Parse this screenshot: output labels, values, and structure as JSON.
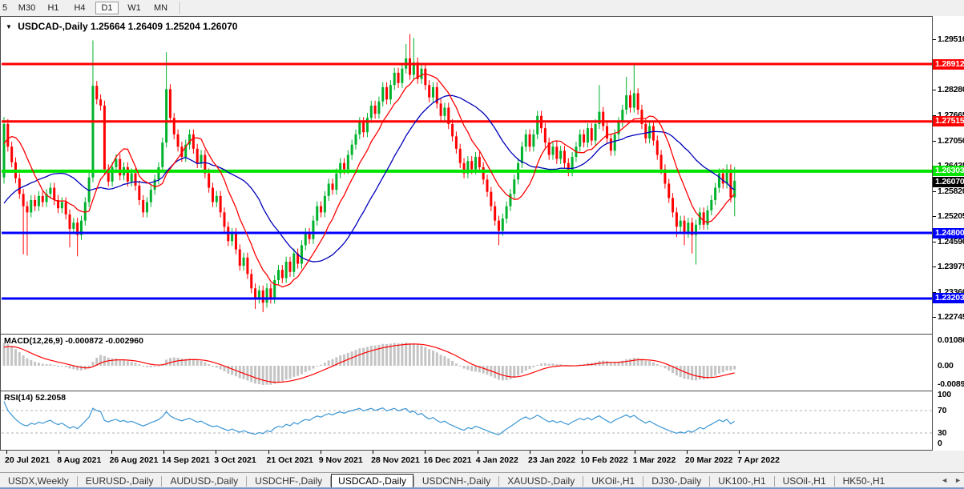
{
  "toolbar": {
    "timeframes": [
      "5",
      "M30",
      "H1",
      "H4",
      "D1",
      "W1",
      "MN"
    ],
    "active": "D1"
  },
  "chart": {
    "dropdown_icon": "▼",
    "symbol": "USDCAD-,Daily",
    "ohlc": "1.25664 1.26409 1.25204 1.26070"
  },
  "price_axis": {
    "ticks": [
      "1.29510",
      "1.28280",
      "1.27665",
      "1.27050",
      "1.26435",
      "1.25820",
      "1.25205",
      "1.24590",
      "1.23975",
      "1.23360",
      "1.22745"
    ]
  },
  "current_price": {
    "label": "1.26070",
    "price": 1.2607,
    "badge_bg": "#000000"
  },
  "macd": {
    "label": "MACD(12,26,9)",
    "values": "-0.000872 -0.002960",
    "axis": [
      "0.010869",
      "0.00",
      "-0.00897"
    ]
  },
  "rsi": {
    "label": "RSI(14)",
    "value": "52.2058",
    "axis": [
      "100",
      "70",
      "30",
      "0"
    ],
    "levels": [
      70,
      30
    ]
  },
  "date_axis": [
    "20 Jul 2021",
    "8 Aug 2021",
    "26 Aug 2021",
    "14 Sep 2021",
    "3 Oct 2021",
    "21 Oct 2021",
    "9 Nov 2021",
    "28 Nov 2021",
    "16 Dec 2021",
    "4 Jan 2022",
    "23 Jan 2022",
    "10 Feb 2022",
    "1 Mar 2022",
    "20 Mar 2022",
    "7 Apr 2022"
  ],
  "tabs": {
    "items": [
      "USDX,Weekly",
      "EURUSD-,Daily",
      "AUDUSD-,Daily",
      "USDCHF-,Daily",
      "USDCAD-,Daily",
      "USDCNH-,Daily",
      "XAUUSD-,Daily",
      "UKOil-,H1",
      "DJ30-,Daily",
      "UK100-,H1",
      "USOil-,H1",
      "HK50-,H1"
    ],
    "active": "USDCAD-,Daily",
    "scroll_left_icon": "◄",
    "scroll_right_icon": "►"
  },
  "colors": {
    "up": "#00b22c",
    "down": "#ff0000",
    "ma_fast": "#ff0000",
    "ma_slow": "#0000bb",
    "macd_hist": "#c4c4c4",
    "macd_signal": "#ff0000",
    "rsi_line": "#3b96d5",
    "rsi_grid": "#b0b0b0"
  },
  "chart_data": {
    "type": "candlestick",
    "symbol": "USDCAD-",
    "timeframe": "Daily",
    "last_candle": {
      "open": 1.25664,
      "high": 1.26409,
      "low": 1.25204,
      "close": 1.2607
    },
    "levels": [
      {
        "price": 1.28912,
        "label": "1.28912",
        "color": "#ff0000"
      },
      {
        "price": 1.27515,
        "label": "1.27515",
        "color": "#ff0000"
      },
      {
        "price": 1.26303,
        "label": "1.26303",
        "color": "#00e400"
      },
      {
        "price": 1.248,
        "label": "1.24800",
        "color": "#0000ff"
      },
      {
        "price": 1.23203,
        "label": "1.23203",
        "color": "#0000ff"
      }
    ],
    "first_open": 1.2615,
    "closes": [
      1.2745,
      1.269,
      1.2652,
      1.2613,
      1.2575,
      1.2545,
      1.253,
      1.256,
      1.2545,
      1.257,
      1.2555,
      1.2575,
      1.259,
      1.256,
      1.254,
      1.2555,
      1.2525,
      1.249,
      1.2505,
      1.2475,
      1.251,
      1.2555,
      1.2615,
      1.2838,
      1.2805,
      1.279,
      1.2635,
      1.2605,
      1.264,
      1.266,
      1.262,
      1.264,
      1.2605,
      1.2625,
      1.2595,
      1.256,
      1.253,
      1.2555,
      1.2585,
      1.261,
      1.264,
      1.27,
      1.283,
      1.276,
      1.272,
      1.269,
      1.2665,
      1.2695,
      1.272,
      1.2685,
      1.265,
      1.267,
      1.2625,
      1.259,
      1.2555,
      1.257,
      1.253,
      1.2495,
      1.246,
      1.248,
      1.244,
      1.24,
      1.242,
      1.238,
      1.2345,
      1.232,
      1.234,
      1.231,
      1.2345,
      1.232,
      1.2365,
      1.239,
      1.237,
      1.241,
      1.2385,
      1.243,
      1.2405,
      1.245,
      1.248,
      1.2465,
      1.251,
      1.2545,
      1.253,
      1.257,
      1.26,
      1.2585,
      1.2625,
      1.265,
      1.2635,
      1.267,
      1.2695,
      1.272,
      1.275,
      1.2725,
      1.276,
      1.279,
      1.277,
      1.28,
      1.2835,
      1.2805,
      1.284,
      1.287,
      1.2845,
      1.288,
      1.2905,
      1.2865,
      1.2895,
      1.2855,
      1.288,
      1.284,
      1.281,
      1.2835,
      1.2795,
      1.2765,
      1.2785,
      1.2745,
      1.2715,
      1.2685,
      1.265,
      1.2625,
      1.2655,
      1.2635,
      1.2665,
      1.264,
      1.261,
      1.258,
      1.2545,
      1.251,
      1.2485,
      1.2515,
      1.2545,
      1.2575,
      1.261,
      1.265,
      1.269,
      1.272,
      1.269,
      1.272,
      1.2765,
      1.2735,
      1.27,
      1.267,
      1.269,
      1.266,
      1.268,
      1.265,
      1.263,
      1.2665,
      1.269,
      1.272,
      1.27,
      1.2735,
      1.2705,
      1.2745,
      1.2775,
      1.274,
      1.271,
      1.268,
      1.272,
      1.275,
      1.278,
      1.2815,
      1.2785,
      1.282,
      1.278,
      1.2745,
      1.271,
      1.274,
      1.2705,
      1.267,
      1.2635,
      1.26,
      1.2565,
      1.253,
      1.2495,
      1.251,
      1.248,
      1.2505,
      1.2475,
      1.25,
      1.253,
      1.25,
      1.2535,
      1.256,
      1.259,
      1.2625,
      1.26,
      1.2635,
      1.25664,
      1.2607
    ],
    "wick_overrides": {
      "0": [
        1.2762,
        1.26
      ],
      "5": [
        null,
        1.2428
      ],
      "6": [
        null,
        1.2425
      ],
      "17": [
        null,
        1.2445
      ],
      "19": [
        null,
        1.2423
      ],
      "23": [
        1.2949,
        null
      ],
      "42": [
        1.292,
        null
      ],
      "65": [
        null,
        1.2295
      ],
      "67": [
        null,
        1.2287
      ],
      "104": [
        1.294,
        null
      ],
      "105": [
        1.2964,
        null
      ],
      "106": [
        1.2955,
        null
      ],
      "128": [
        null,
        1.245
      ],
      "154": [
        1.284,
        null
      ],
      "161": [
        1.286,
        null
      ],
      "163": [
        1.289,
        null
      ],
      "174": [
        null,
        1.247
      ],
      "176": [
        null,
        1.245
      ],
      "178": [
        null,
        1.243
      ],
      "179": [
        null,
        1.2403
      ],
      "189": [
        1.26409,
        1.25204
      ]
    },
    "prehistory": [
      1.2395,
      1.24,
      1.241,
      1.2405,
      1.242,
      1.243,
      1.2425,
      1.244,
      1.2455,
      1.245,
      1.247,
      1.2485,
      1.248,
      1.25,
      1.252,
      1.2545,
      1.257,
      1.26,
      1.264,
      1.268,
      1.272,
      1.275,
      1.277,
      1.276,
      1.274
    ]
  }
}
